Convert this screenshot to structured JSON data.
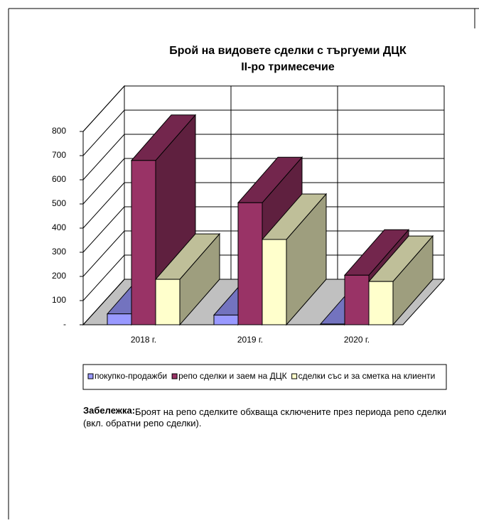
{
  "chart_data": {
    "type": "bar3d",
    "title": "Брой на видовете сделки с търгуеми ДЦК",
    "subtitle": "II-ро тримесечие",
    "categories": [
      "2018 г.",
      "2019 г.",
      "2020 г."
    ],
    "series": [
      {
        "name": "покупко-продажби",
        "color": "#9999ff",
        "values": [
          45,
          40,
          3
        ]
      },
      {
        "name": "репо сделки и заем на ДЦК",
        "color": "#993366",
        "values": [
          680,
          505,
          205
        ]
      },
      {
        "name": "сделки със и за сметка на клиенти",
        "color": "#ffffcc",
        "values": [
          188,
          353,
          179
        ]
      }
    ],
    "ylim": [
      0,
      800
    ],
    "yticks": [
      {
        "value": 0,
        "label": "-"
      },
      100,
      200,
      300,
      400,
      500,
      600,
      700,
      800
    ],
    "grid": true
  },
  "note": {
    "label": "Забележка:",
    "text": "Броят на репо сделките обхваща сключените през периода репо сделки (вкл. обратни репо сделки)."
  }
}
